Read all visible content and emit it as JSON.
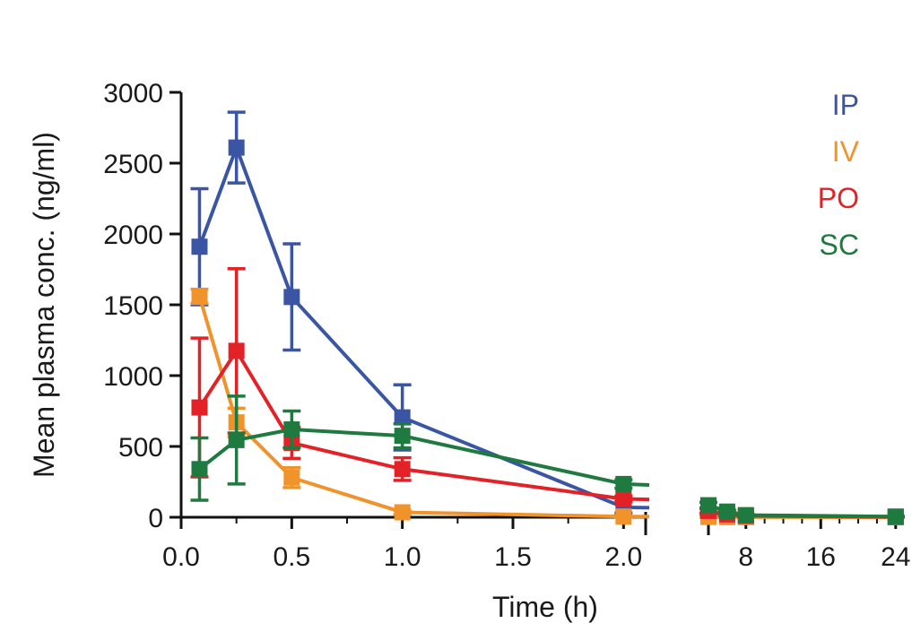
{
  "chart_data": {
    "type": "line",
    "xlabel": "Time (h)",
    "ylabel": "Mean plasma conc. (ng/ml)",
    "ylim": [
      0,
      3000
    ],
    "y_ticks": [
      "0",
      "500",
      "1000",
      "1500",
      "2000",
      "2500",
      "3000"
    ],
    "x_segments": [
      {
        "range": [
          0,
          2.1
        ],
        "ticks": [
          "0.0",
          "0.5",
          "1.0",
          "1.5",
          "2.0"
        ]
      },
      {
        "range": [
          4,
          24.5
        ],
        "ticks": [
          "8",
          "16",
          "24"
        ]
      }
    ],
    "legend_position": "top-right",
    "series": [
      {
        "name": "IP",
        "color": "#3a55a4",
        "x": [
          0.083,
          0.25,
          0.5,
          1,
          2,
          4,
          6,
          8,
          24
        ],
        "y": [
          1910,
          2610,
          1555,
          705,
          70,
          20,
          10,
          5,
          2
        ],
        "err": [
          410,
          250,
          375,
          230,
          40,
          10,
          5,
          3,
          1
        ]
      },
      {
        "name": "IV",
        "color": "#f0932b",
        "x": [
          0.083,
          0.25,
          0.5,
          1,
          2,
          4,
          6,
          8,
          24
        ],
        "y": [
          1560,
          670,
          280,
          35,
          5,
          2,
          1,
          1,
          0
        ],
        "err": [
          50,
          100,
          70,
          15,
          3,
          1,
          1,
          1,
          0
        ]
      },
      {
        "name": "PO",
        "color": "#e32228",
        "x": [
          0.083,
          0.25,
          0.5,
          1,
          2,
          4,
          6,
          8,
          24
        ],
        "y": [
          775,
          1175,
          525,
          340,
          130,
          45,
          20,
          10,
          2
        ],
        "err": [
          490,
          580,
          110,
          80,
          20,
          15,
          8,
          4,
          1
        ]
      },
      {
        "name": "SC",
        "color": "#1f7a3f",
        "x": [
          0.083,
          0.25,
          0.5,
          1,
          2,
          4,
          6,
          8,
          24
        ],
        "y": [
          340,
          545,
          620,
          575,
          235,
          85,
          40,
          15,
          5
        ],
        "err": [
          220,
          310,
          130,
          85,
          30,
          20,
          10,
          5,
          2
        ]
      }
    ]
  }
}
